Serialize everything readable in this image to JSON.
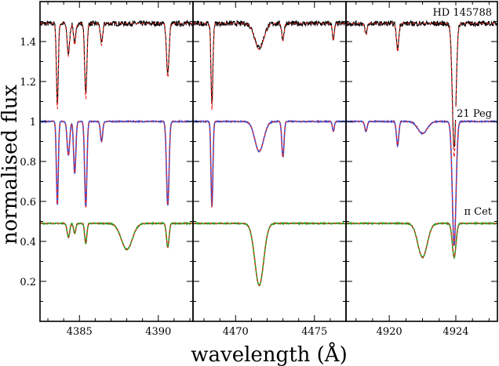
{
  "chart_data": {
    "type": "line",
    "xlabel": "wavelength (Å)",
    "ylabel": "normalised flux",
    "ylim": [
      0.0,
      1.6
    ],
    "y_ticks": [
      0.2,
      0.4,
      0.6,
      0.8,
      1,
      1.2,
      1.4
    ],
    "y_tick_labels": [
      "0.2",
      "0.4",
      "0.6",
      "0.8",
      "1",
      "1.2",
      "1.4"
    ],
    "panels": [
      {
        "xlim": [
          4382.5,
          4392.2
        ],
        "x_ticks": [
          4385,
          4390
        ],
        "x_tick_labels": [
          "4385",
          "4390"
        ],
        "lines": [
          {
            "center": 4383.6,
            "width": 0.06,
            "depths": {
              "HD 145788": 0.4,
              "21 Peg": 0.42,
              "pi Cet": 0.0
            }
          },
          {
            "center": 4384.3,
            "width": 0.08,
            "depths": {
              "HD 145788": 0.15,
              "21 Peg": 0.17,
              "pi Cet": 0.07
            }
          },
          {
            "center": 4384.7,
            "width": 0.07,
            "depths": {
              "HD 145788": 0.1,
              "21 Peg": 0.26,
              "pi Cet": 0.05
            }
          },
          {
            "center": 4385.4,
            "width": 0.07,
            "depths": {
              "HD 145788": 0.35,
              "21 Peg": 0.43,
              "pi Cet": 0.1
            }
          },
          {
            "center": 4386.4,
            "width": 0.07,
            "depths": {
              "HD 145788": 0.1,
              "21 Peg": 0.1,
              "pi Cet": 0.0
            }
          },
          {
            "center": 4388.0,
            "width": 0.35,
            "depths": {
              "HD 145788": 0.0,
              "21 Peg": 0.0,
              "pi Cet": 0.13
            }
          },
          {
            "center": 4390.6,
            "width": 0.08,
            "depths": {
              "HD 145788": 0.25,
              "21 Peg": 0.42,
              "pi Cet": 0.12
            }
          }
        ]
      },
      {
        "xlim": [
          4467.3,
          4477.0
        ],
        "x_ticks": [
          4470,
          4475
        ],
        "x_tick_labels": [
          "4470",
          "4475"
        ],
        "lines": [
          {
            "center": 4468.5,
            "width": 0.06,
            "depths": {
              "HD 145788": 0.4,
              "21 Peg": 0.43,
              "pi Cet": 0.0
            }
          },
          {
            "center": 4471.5,
            "width": 0.28,
            "depths": {
              "HD 145788": 0.12,
              "21 Peg": 0.15,
              "pi Cet": 0.31
            }
          },
          {
            "center": 4473.0,
            "width": 0.07,
            "depths": {
              "HD 145788": 0.08,
              "21 Peg": 0.18,
              "pi Cet": 0.0
            }
          },
          {
            "center": 4476.2,
            "width": 0.06,
            "depths": {
              "HD 145788": 0.08,
              "21 Peg": 0.05,
              "pi Cet": 0.0
            }
          }
        ]
      },
      {
        "xlim": [
          4917.4,
          4926.5
        ],
        "x_ticks": [
          4920,
          4924
        ],
        "x_tick_labels": [
          "4920",
          "4924"
        ],
        "lines": [
          {
            "center": 4918.6,
            "width": 0.07,
            "depths": {
              "HD 145788": 0.05,
              "21 Peg": 0.05,
              "pi Cet": 0.0
            }
          },
          {
            "center": 4920.5,
            "width": 0.07,
            "depths": {
              "HD 145788": 0.13,
              "21 Peg": 0.12,
              "pi Cet": 0.0
            }
          },
          {
            "center": 4922.0,
            "width": 0.28,
            "depths": {
              "HD 145788": 0.0,
              "21 Peg": 0.06,
              "pi Cet": 0.17
            }
          },
          {
            "center": 4923.9,
            "width": 0.11,
            "depths": {
              "HD 145788": 0.62,
              "21 Peg": 0.62,
              "pi Cet": 0.17
            }
          }
        ]
      }
    ],
    "series": [
      {
        "name": "HD 145788",
        "continuum": 1.49,
        "observed_color": "#000000",
        "model_color": "#e8231a"
      },
      {
        "name": "21 Peg",
        "continuum": 1.0,
        "observed_color": "#3a4fd8",
        "model_color": "#e8231a"
      },
      {
        "name": "π Cet",
        "continuum": 0.49,
        "observed_color": "#1fa51f",
        "model_color": "#e8231a"
      }
    ],
    "model_style": "dashed"
  }
}
